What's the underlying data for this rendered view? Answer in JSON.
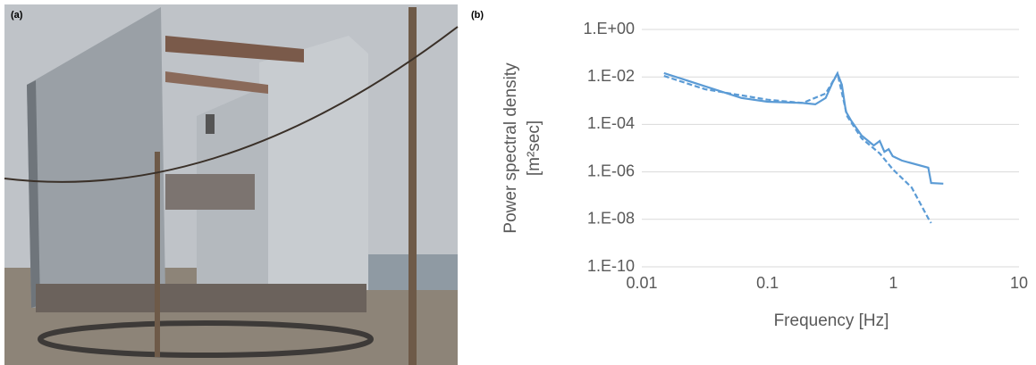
{
  "panel_labels": [
    "(a)",
    "(b)"
  ],
  "chart_data": {
    "type": "line",
    "xlabel": "Frequency [Hz]",
    "ylabel": [
      "Power spectral density",
      "[m²sec]"
    ],
    "xscale": "log",
    "yscale": "log",
    "xlim": [
      0.01,
      10
    ],
    "ylim": [
      1e-10,
      1
    ],
    "xticks": [
      0.01,
      0.1,
      1,
      10
    ],
    "yticks": [
      {
        "value": 1e-10,
        "label": "1.E-10"
      },
      {
        "value": 1e-08,
        "label": "1.E-08"
      },
      {
        "value": 1e-06,
        "label": "1.E-06"
      },
      {
        "value": 0.0001,
        "label": "1.E-04"
      },
      {
        "value": 0.01,
        "label": "1.E-02"
      },
      {
        "value": 1,
        "label": "1.E+00"
      }
    ],
    "grid": "y",
    "series": [
      {
        "color": "#5b9bd5",
        "dash": false,
        "x": [
          0.015,
          0.032,
          0.062,
          0.1,
          0.19,
          0.24,
          0.29,
          0.33,
          0.36,
          0.39,
          0.42,
          0.46,
          0.56,
          0.7,
          0.78,
          0.85,
          0.92,
          0.99,
          1.17,
          1.9,
          2.0,
          2.5
        ],
        "values": [
          0.0145,
          0.004,
          0.0013,
          0.0009,
          0.0008,
          0.0007,
          0.0013,
          0.006,
          0.014,
          0.0047,
          0.00035,
          0.00015,
          3.4e-05,
          1.3e-05,
          2e-05,
          7e-06,
          9e-06,
          4.6e-06,
          3e-06,
          1.5e-06,
          3.4e-07,
          3.2e-07
        ]
      },
      {
        "color": "#5b9bd5",
        "dash": true,
        "x": [
          0.015,
          0.032,
          0.1,
          0.19,
          0.29,
          0.36,
          0.43,
          0.56,
          0.78,
          0.99,
          1.4,
          1.9,
          2.0
        ],
        "values": [
          0.011,
          0.003,
          0.0011,
          0.0008,
          0.002,
          0.014,
          0.00022,
          2.6e-05,
          6e-06,
          1.3e-06,
          2.2e-07,
          1.1e-08,
          7e-09
        ]
      }
    ]
  }
}
